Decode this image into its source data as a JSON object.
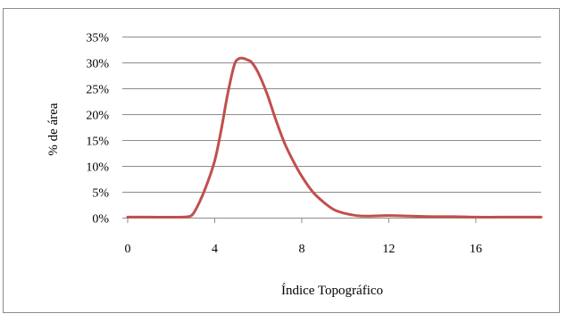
{
  "chart_data": {
    "type": "line",
    "title": "",
    "xlabel": "Índice Topográfico",
    "ylabel": "% de área",
    "xlim": [
      0,
      19
    ],
    "ylim": [
      0,
      0.35
    ],
    "x_ticks": [
      0,
      4,
      8,
      12,
      16
    ],
    "x_tick_labels": [
      "0",
      "4",
      "8",
      "12",
      "16"
    ],
    "y_ticks": [
      0,
      0.05,
      0.1,
      0.15,
      0.2,
      0.25,
      0.3,
      0.35
    ],
    "y_tick_labels": [
      "0%",
      "5%",
      "10%",
      "15%",
      "20%",
      "25%",
      "30%",
      "35%"
    ],
    "grid": "horizontal",
    "legend": "none",
    "series": [
      {
        "color": "#c0504d",
        "x": [
          0,
          1,
          2,
          2.5,
          2.8,
          3,
          3.3,
          3.6,
          4,
          4.3,
          4.6,
          4.9,
          5.1,
          5.3,
          5.5,
          5.7,
          6,
          6.4,
          6.8,
          7.2,
          7.6,
          8,
          8.5,
          9,
          9.5,
          10,
          10.5,
          11,
          12,
          13,
          14,
          15,
          16,
          17,
          18,
          19
        ],
        "y": [
          0.001,
          0.001,
          0.0008,
          0.001,
          0.002,
          0.007,
          0.03,
          0.06,
          0.11,
          0.17,
          0.24,
          0.295,
          0.307,
          0.308,
          0.305,
          0.3,
          0.28,
          0.24,
          0.19,
          0.145,
          0.11,
          0.08,
          0.05,
          0.03,
          0.015,
          0.008,
          0.004,
          0.003,
          0.004,
          0.003,
          0.002,
          0.002,
          0.001,
          0.001,
          0.001,
          0.001
        ]
      }
    ]
  }
}
